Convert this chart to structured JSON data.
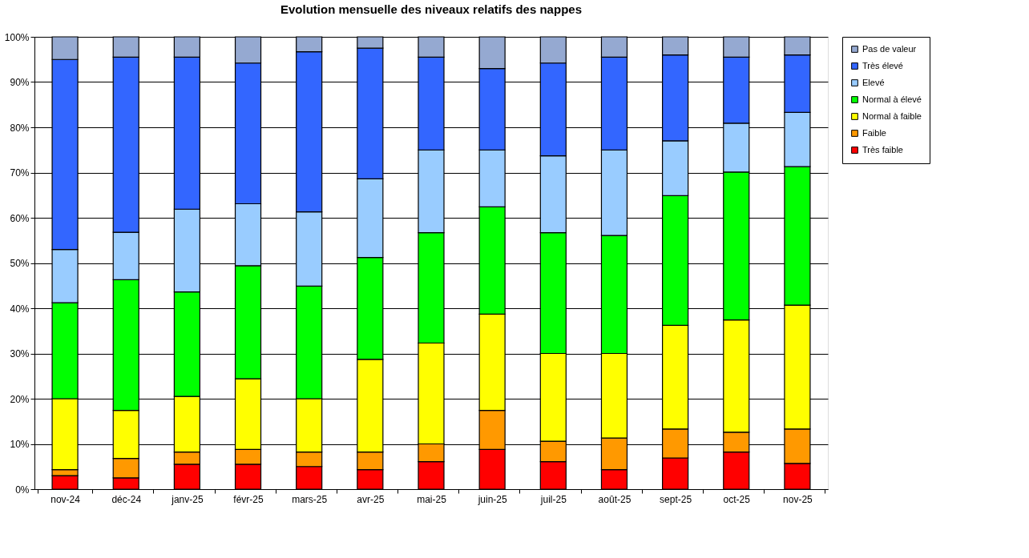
{
  "chart_data": {
    "type": "bar",
    "title": "Evolution mensuelle des niveaux relatifs des nappes",
    "stacked": true,
    "categories": [
      "nov-24",
      "déc-24",
      "janv-25",
      "févr-25",
      "mars-25",
      "avr-25",
      "mai-25",
      "juin-25",
      "juil-25",
      "août-25",
      "sept-25",
      "oct-25",
      "nov-25"
    ],
    "series": [
      {
        "name": "Très faible",
        "color": "#ff0000",
        "values": [
          3,
          2.5,
          5.5,
          5.5,
          5,
          4.3,
          6.1,
          8.8,
          6.1,
          4.3,
          6.9,
          8.2,
          5.7
        ]
      },
      {
        "name": "Faible",
        "color": "#ff9900",
        "values": [
          1.3,
          4.3,
          2.7,
          3.3,
          3.2,
          3.9,
          3.9,
          8.6,
          4.5,
          7,
          6.4,
          4.4,
          7.6
        ]
      },
      {
        "name": "Normal à faible",
        "color": "#ffff00",
        "values": [
          15.7,
          10.6,
          12.3,
          15.6,
          11.8,
          20.5,
          22.3,
          21.3,
          19.4,
          18.7,
          22.9,
          24.8,
          27.4
        ]
      },
      {
        "name": "Normal à élevé",
        "color": "#00ff00",
        "values": [
          21.2,
          28.9,
          23.1,
          25,
          24.9,
          22.5,
          24.4,
          23.7,
          26.7,
          26.1,
          28.7,
          32.7,
          30.6
        ]
      },
      {
        "name": "Elevé",
        "color": "#99ccff",
        "values": [
          11.8,
          10.5,
          18.3,
          13.7,
          16.4,
          17.4,
          18.3,
          12.6,
          17,
          18.9,
          12.1,
          10.8,
          12
        ]
      },
      {
        "name": "Très élevé",
        "color": "#3366ff",
        "values": [
          42,
          38.7,
          33.6,
          31.1,
          35.4,
          28.9,
          20.5,
          18,
          20.5,
          20.5,
          19,
          14.6,
          12.7
        ]
      },
      {
        "name": "Pas de valeur",
        "color": "#95a9d1",
        "values": [
          5,
          4.5,
          4.5,
          5.8,
          3.3,
          2.5,
          4.5,
          7,
          5.8,
          4.5,
          4,
          4.5,
          4
        ]
      }
    ],
    "ylim": [
      0,
      100
    ],
    "yticks": [
      {
        "value": 0,
        "label": "0%"
      },
      {
        "value": 10,
        "label": "10%"
      },
      {
        "value": 20,
        "label": "20%"
      },
      {
        "value": 30,
        "label": "30%"
      },
      {
        "value": 40,
        "label": "40%"
      },
      {
        "value": 50,
        "label": "50%"
      },
      {
        "value": 60,
        "label": "60%"
      },
      {
        "value": 70,
        "label": "70%"
      },
      {
        "value": 80,
        "label": "80%"
      },
      {
        "value": 90,
        "label": "90%"
      },
      {
        "value": 100,
        "label": "100%"
      }
    ],
    "grid": "y",
    "legend": "right"
  }
}
